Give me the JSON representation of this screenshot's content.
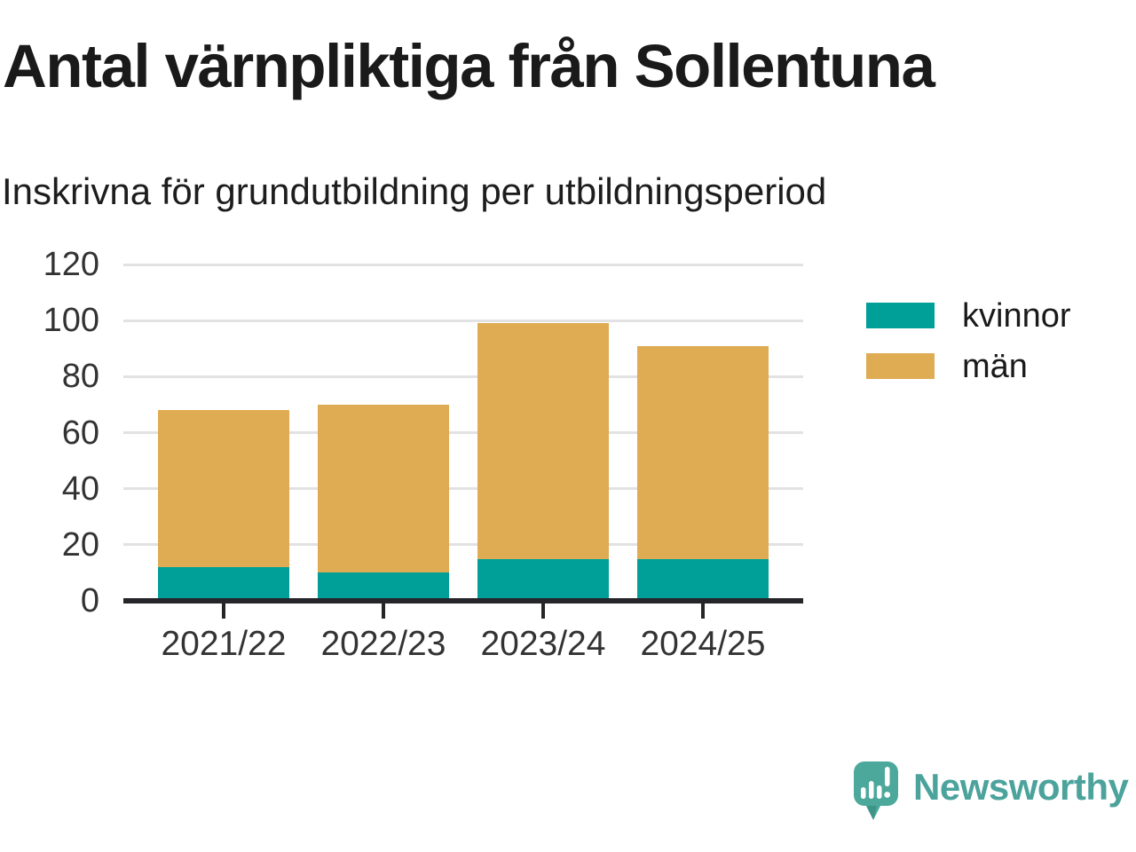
{
  "title": "Antal värnpliktiga från Sollentuna",
  "subtitle": "Inskrivna för grundutbildning per utbildningsperiod",
  "chart_data": {
    "type": "bar",
    "stacked": true,
    "title": "Antal värnpliktiga från Sollentuna",
    "subtitle": "Inskrivna för grundutbildning per utbildningsperiod",
    "categories": [
      "2021/22",
      "2022/23",
      "2023/24",
      "2024/25"
    ],
    "series": [
      {
        "name": "kvinnor",
        "color": "#00a099",
        "values": [
          12,
          10,
          15,
          15
        ]
      },
      {
        "name": "män",
        "color": "#dfac54",
        "values": [
          56,
          60,
          84,
          76
        ]
      }
    ],
    "stack_totals": [
      68,
      70,
      99,
      91
    ],
    "ylim": [
      0,
      120
    ],
    "yticks": [
      0,
      20,
      40,
      60,
      80,
      100,
      120
    ],
    "xlabel": "",
    "ylabel": "",
    "grid": "horizontal",
    "legend_position": "right"
  },
  "colors": {
    "kvinnor": "#00a099",
    "man": "#dfac54",
    "gridline": "#e2e2e2",
    "axis": "#26262a",
    "text": "#1a1a1a",
    "tick_text": "#333333",
    "brand": "#4ba39c"
  },
  "branding": {
    "logo_text": "Newsworthy",
    "logo_icon": "newsworthy-speech-bubble-barchart-icon"
  }
}
